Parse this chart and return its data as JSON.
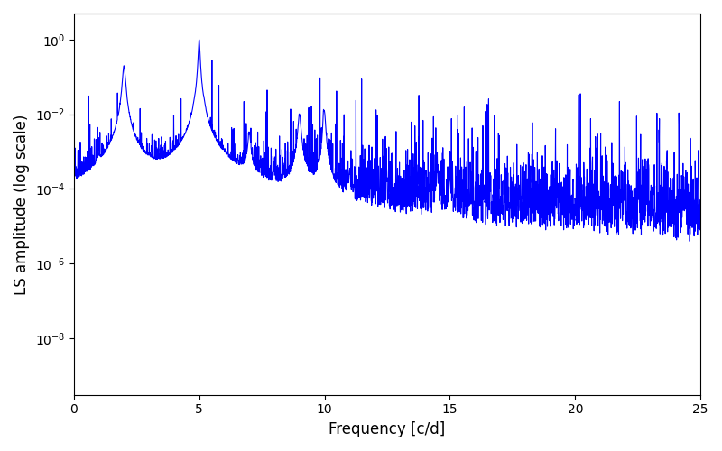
{
  "title": "",
  "xlabel": "Frequency [c/d]",
  "ylabel": "LS amplitude (log scale)",
  "line_color": "#0000ff",
  "line_width": 0.8,
  "xmin": 0,
  "xmax": 25,
  "ymin": 3e-10,
  "ymax": 5,
  "figsize": [
    8.0,
    5.0
  ],
  "dpi": 100,
  "seed": 42,
  "n_points": 3000,
  "peak_freqs": [
    2.0,
    4.8,
    5.0,
    5.2,
    7.0,
    9.0,
    10.0,
    14.5
  ],
  "peak_amps": [
    0.2,
    0.003,
    1.0,
    0.004,
    0.003,
    0.01,
    0.01,
    0.0003
  ],
  "peak_widths": [
    0.05,
    0.05,
    0.03,
    0.05,
    0.05,
    0.05,
    0.04,
    0.03
  ]
}
